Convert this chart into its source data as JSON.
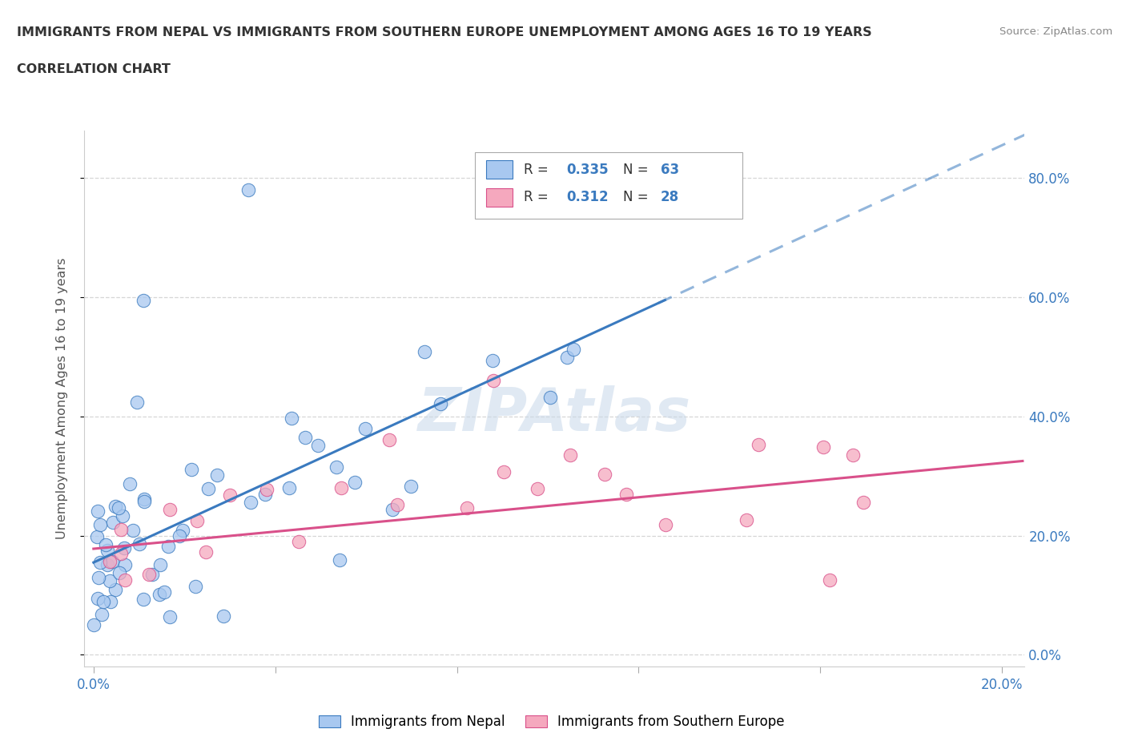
{
  "title_line1": "IMMIGRANTS FROM NEPAL VS IMMIGRANTS FROM SOUTHERN EUROPE UNEMPLOYMENT AMONG AGES 16 TO 19 YEARS",
  "title_line2": "CORRELATION CHART",
  "source_text": "Source: ZipAtlas.com",
  "ylabel": "Unemployment Among Ages 16 to 19 years",
  "xlim": [
    -0.002,
    0.205
  ],
  "ylim": [
    -0.02,
    0.88
  ],
  "nepal_color": "#a8c8f0",
  "nepal_line_color": "#3a7abf",
  "se_color": "#f5a8be",
  "se_line_color": "#d9508a",
  "watermark": "ZIPAtlas",
  "watermark_color": "#c8d8ea",
  "legend_nepal_label": "Immigrants from Nepal",
  "legend_se_label": "Immigrants from Southern Europe",
  "background_color": "#ffffff",
  "grid_color": "#cccccc",
  "title_color": "#333333",
  "axis_label_color": "#555555",
  "tick_label_color": "#3a7abf",
  "nepal_R": "0.335",
  "nepal_N": "63",
  "se_R": "0.312",
  "se_N": "28"
}
